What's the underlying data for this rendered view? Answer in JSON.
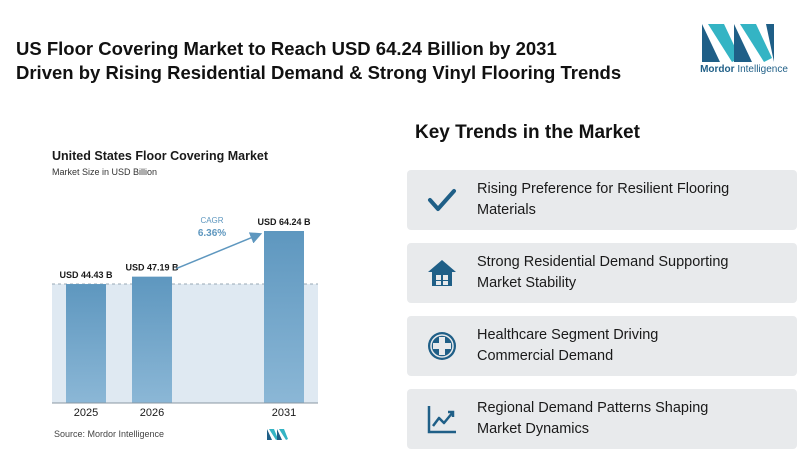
{
  "header": {
    "headline_line1": "US Floor Covering Market to Reach USD 64.24 Billion by 2031",
    "headline_line2": "Driven by Rising Residential Demand & Strong Vinyl Flooring Trends",
    "logo_word1": "Mordor",
    "logo_word2": "Intelligence"
  },
  "chart_data": {
    "type": "bar",
    "title": "United States Floor Covering Market",
    "subtitle": "Market Size in USD Billion",
    "categories": [
      "2025",
      "2026",
      "2031"
    ],
    "values": [
      44.43,
      47.19,
      64.24
    ],
    "data_labels": [
      "USD 44.43 B",
      "USD 47.19 B",
      "USD 64.24 B"
    ],
    "cagr_label": "CAGR",
    "cagr_value": "6.36%",
    "source": "Source: Mordor Intelligence",
    "colors": {
      "bar_top": "#5e97bf",
      "bar_bottom": "#8bb7d6",
      "band": "#dfe9f2",
      "arrow": "#5e97bf",
      "cagr": "#5e97bf"
    }
  },
  "trends": {
    "title": "Key Trends in the Market",
    "items": [
      {
        "line1": "Rising Preference for Resilient Flooring",
        "line2": "Materials",
        "icon": "checkmark-icon"
      },
      {
        "line1": "Strong Residential Demand Supporting",
        "line2": "Market Stability",
        "icon": "house-icon"
      },
      {
        "line1": "Healthcare Segment Driving",
        "line2": "Commercial Demand",
        "icon": "medical-plus-icon"
      },
      {
        "line1": "Regional Demand Patterns Shaping",
        "line2": "Market Dynamics",
        "icon": "line-chart-icon"
      }
    ],
    "icon_color": "#1f5f87"
  }
}
